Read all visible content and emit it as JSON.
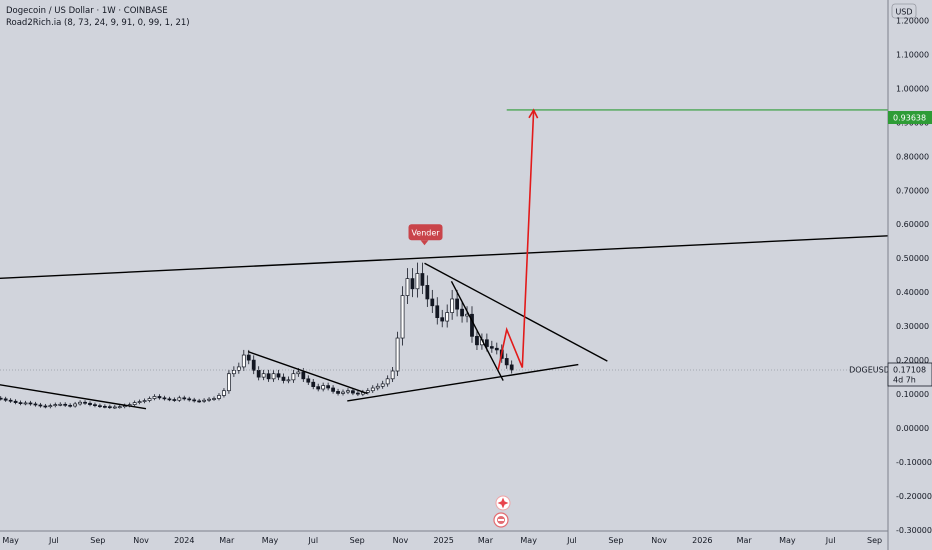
{
  "header": {
    "title": "Dogecoin / US Dollar · 1W · COINBASE",
    "indicator": "Road2Rich.ia (8, 73, 24, 9, 91, 0, 99, 1, 21)"
  },
  "price_axis": {
    "currency_button": "USD",
    "symbol_label": "DOGEUSD",
    "current_price": "0.17108",
    "countdown": "4d 7h",
    "target_price": "0.93638"
  },
  "colors": {
    "background": "#d1d4dc",
    "candle_body": "#ffffff",
    "candle_outline": "#131722",
    "trendline": "#000000",
    "projection": "#e21a1a",
    "target_line": "#2e9c36",
    "marker": "#c9444a"
  },
  "marker": {
    "label": "Vender"
  },
  "icons": [
    "ai-spark-icon",
    "tradingview-badge-icon"
  ],
  "chart_data": {
    "type": "candlestick",
    "title": "Dogecoin / US Dollar · 1W · COINBASE",
    "ylim": [
      -0.3,
      1.26
    ],
    "y_ticks": [
      -0.3,
      -0.2,
      -0.1,
      0.0,
      0.1,
      0.2,
      0.3,
      0.4,
      0.5,
      0.6,
      0.7,
      0.8,
      0.9,
      1.0,
      1.1,
      1.2
    ],
    "y_tick_labels": [
      "-0.30000",
      "-0.20000",
      "-0.10000",
      "0.00000",
      "0.10000",
      "0.20000",
      "0.30000",
      "0.40000",
      "0.50000",
      "0.60000",
      "0.70000",
      "0.80000",
      "0.90000",
      "1.00000",
      "1.10000",
      "1.20000"
    ],
    "x_range": [
      "2023-04-16",
      "2026-09-20"
    ],
    "x_ticks": [
      {
        "date": "2023-05-01",
        "label": "May"
      },
      {
        "date": "2023-07-01",
        "label": "Jul"
      },
      {
        "date": "2023-09-01",
        "label": "Sep"
      },
      {
        "date": "2023-11-01",
        "label": "Nov"
      },
      {
        "date": "2024-01-01",
        "label": "2024"
      },
      {
        "date": "2024-03-01",
        "label": "Mar"
      },
      {
        "date": "2024-05-01",
        "label": "May"
      },
      {
        "date": "2024-07-01",
        "label": "Jul"
      },
      {
        "date": "2024-09-01",
        "label": "Sep"
      },
      {
        "date": "2024-11-01",
        "label": "Nov"
      },
      {
        "date": "2025-01-01",
        "label": "2025"
      },
      {
        "date": "2025-03-01",
        "label": "Mar"
      },
      {
        "date": "2025-05-01",
        "label": "May"
      },
      {
        "date": "2025-07-01",
        "label": "Jul"
      },
      {
        "date": "2025-09-01",
        "label": "Sep"
      },
      {
        "date": "2025-11-01",
        "label": "Nov"
      },
      {
        "date": "2026-01-01",
        "label": "2026"
      },
      {
        "date": "2026-03-01",
        "label": "Mar"
      },
      {
        "date": "2026-05-01",
        "label": "May"
      },
      {
        "date": "2026-07-01",
        "label": "Jul"
      },
      {
        "date": "2026-09-01",
        "label": "Sep"
      }
    ],
    "weekly_closes": {
      "first_week": "2023-04-17",
      "open_first": 0.088,
      "values": [
        0.086,
        0.082,
        0.079,
        0.075,
        0.072,
        0.074,
        0.071,
        0.068,
        0.065,
        0.063,
        0.066,
        0.069,
        0.07,
        0.067,
        0.065,
        0.071,
        0.076,
        0.073,
        0.069,
        0.066,
        0.064,
        0.063,
        0.061,
        0.062,
        0.063,
        0.066,
        0.069,
        0.075,
        0.078,
        0.081,
        0.087,
        0.093,
        0.089,
        0.086,
        0.084,
        0.082,
        0.089,
        0.086,
        0.083,
        0.08,
        0.079,
        0.082,
        0.085,
        0.087,
        0.096,
        0.11,
        0.16,
        0.17,
        0.18,
        0.215,
        0.2,
        0.17,
        0.15,
        0.16,
        0.145,
        0.16,
        0.15,
        0.14,
        0.142,
        0.16,
        0.165,
        0.145,
        0.135,
        0.122,
        0.115,
        0.125,
        0.118,
        0.108,
        0.102,
        0.106,
        0.11,
        0.103,
        0.1,
        0.105,
        0.11,
        0.118,
        0.123,
        0.13,
        0.145,
        0.168,
        0.265,
        0.39,
        0.44,
        0.41,
        0.455,
        0.42,
        0.38,
        0.36,
        0.325,
        0.315,
        0.34,
        0.38,
        0.35,
        0.33,
        0.335,
        0.27,
        0.245,
        0.26,
        0.24,
        0.235,
        0.23,
        0.205,
        0.186,
        0.171
      ]
    },
    "trendlines": [
      {
        "from": {
          "date": "2022-09-01",
          "price": 0.205
        },
        "to": {
          "date": "2023-11-08",
          "price": 0.057
        }
      },
      {
        "from": {
          "date": "2022-01-01",
          "price": 0.394
        },
        "to": {
          "date": "2026-09-20",
          "price": 0.566
        }
      },
      {
        "from": {
          "date": "2024-03-31",
          "price": 0.225
        },
        "to": {
          "date": "2024-09-15",
          "price": 0.102
        }
      },
      {
        "from": {
          "date": "2024-08-18",
          "price": 0.08
        },
        "to": {
          "date": "2025-07-10",
          "price": 0.187
        }
      },
      {
        "from": {
          "date": "2024-12-05",
          "price": 0.485
        },
        "to": {
          "date": "2025-08-20",
          "price": 0.197
        }
      },
      {
        "from": {
          "date": "2025-01-12",
          "price": 0.432
        },
        "to": {
          "date": "2025-03-26",
          "price": 0.14
        }
      }
    ],
    "projection": [
      {
        "date": "2025-03-19",
        "price": 0.172
      },
      {
        "date": "2025-03-31",
        "price": 0.29
      },
      {
        "date": "2025-04-22",
        "price": 0.178
      },
      {
        "date": "2025-05-08",
        "price": 0.936
      }
    ],
    "target_level": {
      "price": 0.93638,
      "from": "2025-03-31"
    },
    "annotation": {
      "text": "Vender",
      "date": "2024-12-05",
      "price": 0.485
    }
  }
}
